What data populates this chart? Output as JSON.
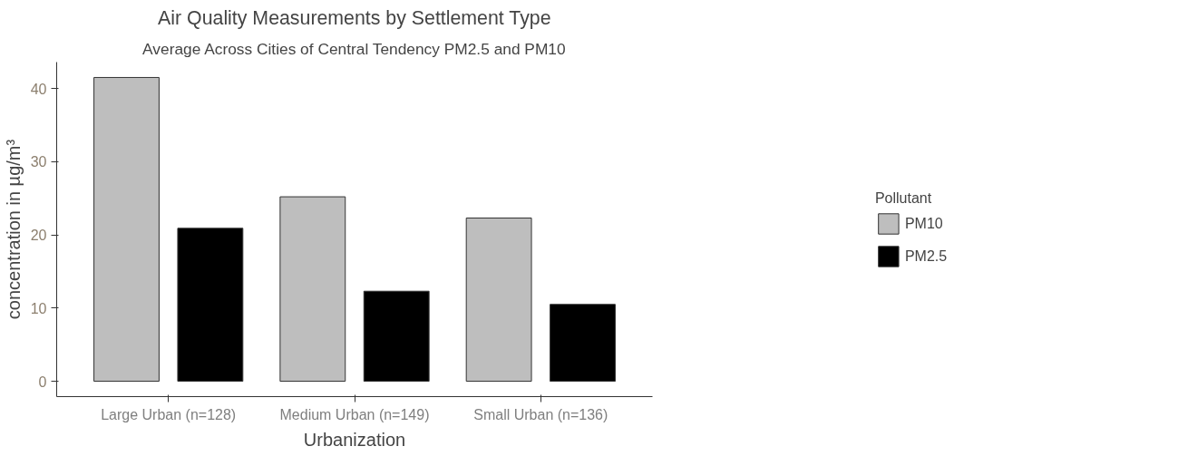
{
  "chart_data": {
    "type": "bar",
    "title": "Air Quality Measurements by Settlement Type",
    "subtitle": "Average Across Cities of Central Tendency PM2.5 and PM10",
    "xlabel": "Urbanization",
    "ylabel": "concentration in µg/m³",
    "legend_title": "Pollutant",
    "categories": [
      "Large Urban (n=128)",
      "Medium Urban (n=149)",
      "Small Urban (n=136)"
    ],
    "series": [
      {
        "name": "PM10",
        "color": "#bebebe",
        "values": [
          41.5,
          25.2,
          22.3
        ]
      },
      {
        "name": "PM2.5",
        "color": "#000000",
        "values": [
          20.9,
          12.3,
          10.5
        ]
      }
    ],
    "ylim": [
      -2.1,
      43.6
    ],
    "yticks": [
      0,
      10,
      20,
      30,
      40
    ],
    "grid": false,
    "legend": "right"
  }
}
